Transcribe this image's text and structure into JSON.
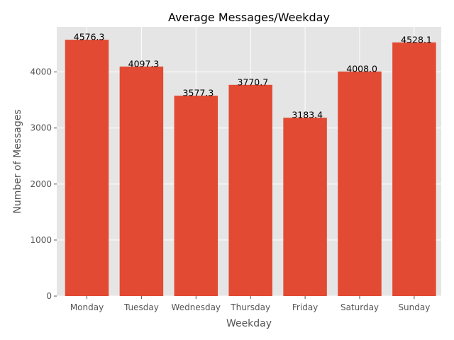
{
  "chart_data": {
    "type": "bar",
    "title": "Average Messages/Weekday",
    "xlabel": "Weekday",
    "ylabel": "Number of Messages",
    "categories": [
      "Monday",
      "Tuesday",
      "Wednesday",
      "Thursday",
      "Friday",
      "Saturday",
      "Sunday"
    ],
    "values": [
      4576.3,
      4097.3,
      3577.3,
      3770.7,
      3183.4,
      4008.0,
      4528.1
    ],
    "data_labels": [
      "4576.3",
      "4097.3",
      "3577.3",
      "3770.7",
      "3183.4",
      "4008.0",
      "4528.1"
    ],
    "ylim": [
      0,
      4805
    ],
    "yticks": [
      0,
      1000,
      2000,
      3000,
      4000
    ],
    "grid": true,
    "bar_color": "#e24a33",
    "plot_background": "#e5e5e5"
  }
}
